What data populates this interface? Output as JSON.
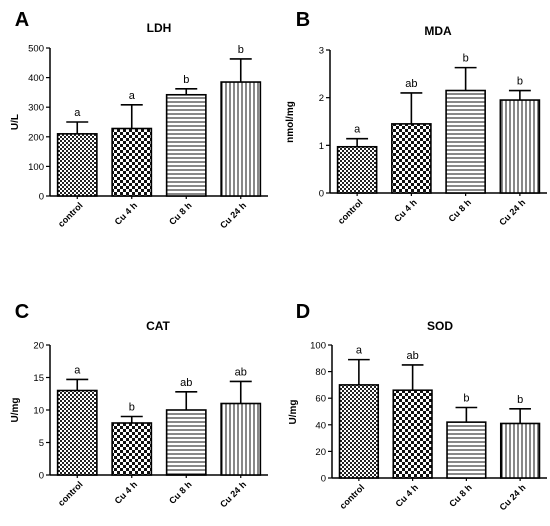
{
  "chart_data": [
    {
      "type": "bar",
      "panel": "A",
      "title": "LDH",
      "ylabel": "U/L",
      "xlabel": "",
      "categories": [
        "control",
        "Cu 4 h",
        "Cu 8 h",
        "Cu 24 h"
      ],
      "values": [
        210,
        228,
        342,
        385
      ],
      "errors": [
        40,
        80,
        20,
        78
      ],
      "letters": [
        "a",
        "a",
        "b",
        "b"
      ],
      "ylim": [
        0,
        500
      ],
      "yticks": [
        0,
        100,
        200,
        300,
        400,
        500
      ],
      "grid": false
    },
    {
      "type": "bar",
      "panel": "B",
      "title": "MDA",
      "ylabel": "nmol/mg",
      "xlabel": "",
      "categories": [
        "control",
        "Cu 4 h",
        "Cu 8 h",
        "Cu 24 h"
      ],
      "values": [
        0.97,
        1.45,
        2.15,
        1.95
      ],
      "errors": [
        0.17,
        0.65,
        0.48,
        0.2
      ],
      "letters": [
        "a",
        "ab",
        "b",
        "b"
      ],
      "ylim": [
        0,
        3
      ],
      "yticks": [
        0,
        1,
        2,
        3
      ],
      "grid": false
    },
    {
      "type": "bar",
      "panel": "C",
      "title": "CAT",
      "ylabel": "U/mg",
      "xlabel": "",
      "categories": [
        "control",
        "Cu 4 h",
        "Cu 8 h",
        "Cu 24 h"
      ],
      "values": [
        13.0,
        8.0,
        10.0,
        11.0
      ],
      "errors": [
        1.7,
        1.0,
        2.8,
        3.4
      ],
      "letters": [
        "a",
        "b",
        "ab",
        "ab"
      ],
      "ylim": [
        0,
        20
      ],
      "yticks": [
        0,
        5,
        10,
        15,
        20
      ],
      "grid": false
    },
    {
      "type": "bar",
      "panel": "D",
      "title": "SOD",
      "ylabel": "U/mg",
      "xlabel": "",
      "categories": [
        "control",
        "Cu 4 h",
        "Cu 8 h",
        "Cu 24 h"
      ],
      "values": [
        70,
        66,
        42,
        41
      ],
      "errors": [
        19,
        19,
        11,
        11
      ],
      "letters": [
        "a",
        "ab",
        "b",
        "b"
      ],
      "ylim": [
        0,
        100
      ],
      "yticks": [
        0,
        20,
        40,
        60,
        80,
        100
      ],
      "grid": false
    }
  ]
}
